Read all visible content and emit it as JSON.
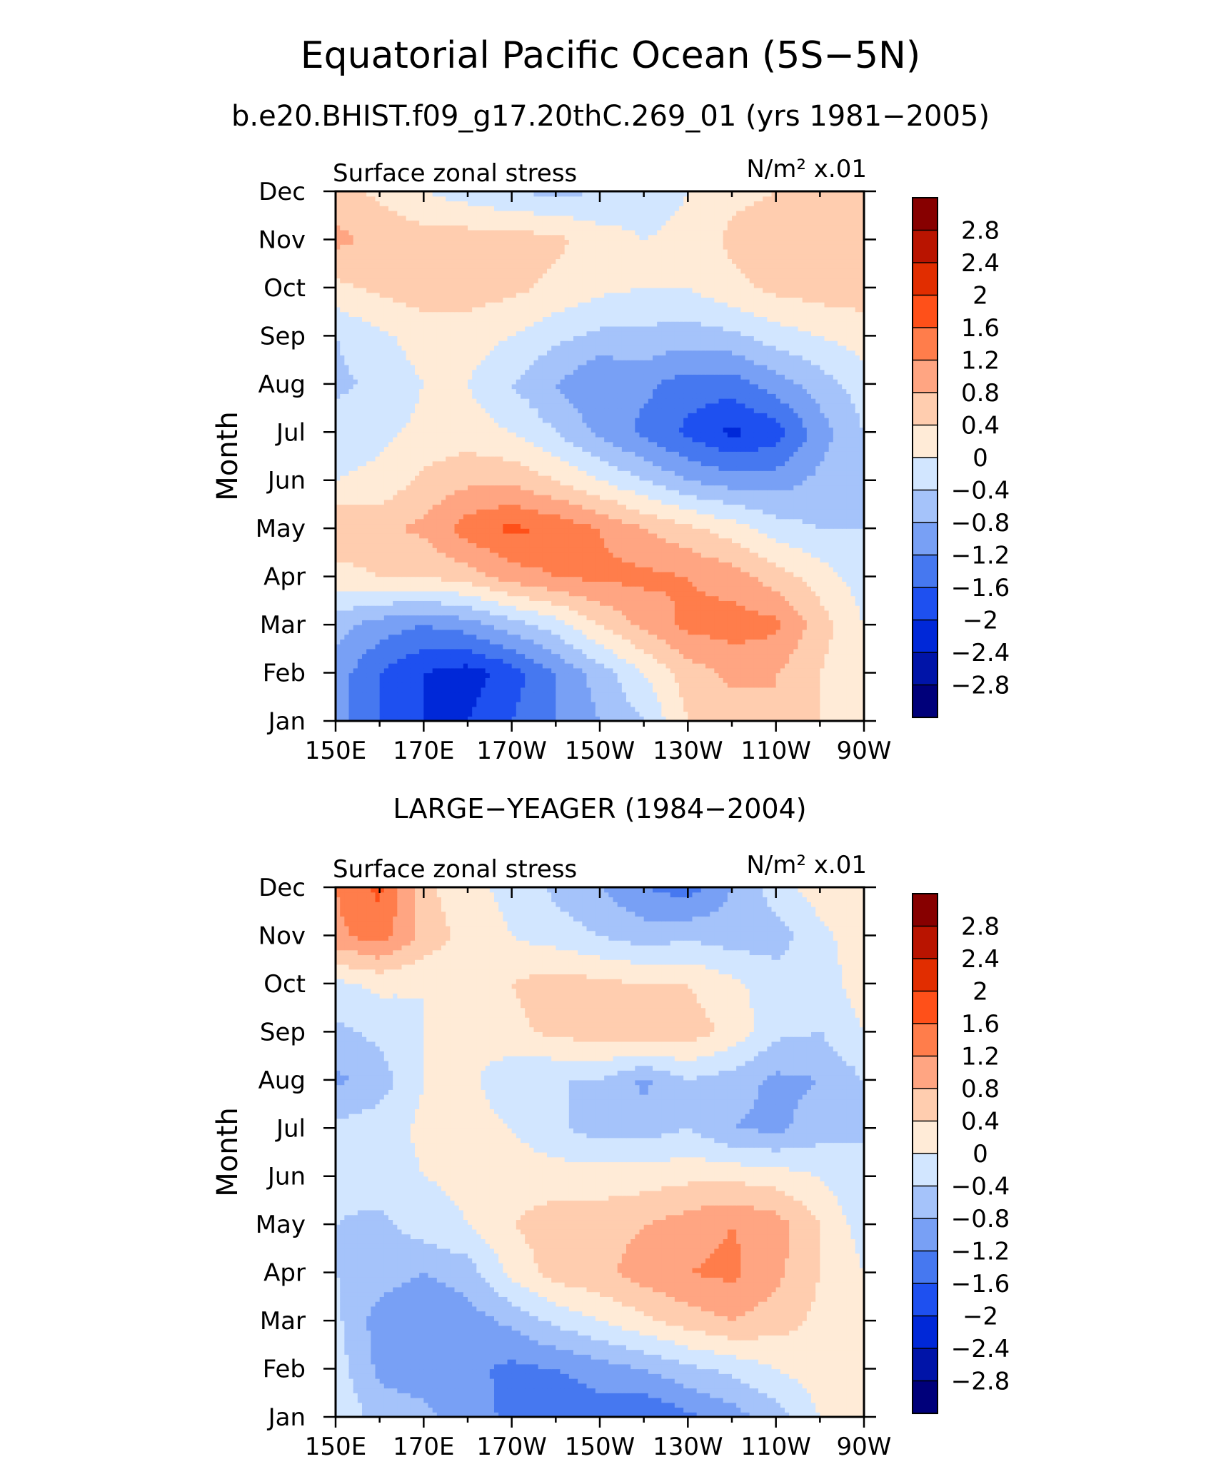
{
  "title": "Equatorial Pacific Ocean (5S−5N)",
  "subtitle": "b.e20.BHIST.f09_g17.20thC.269_01 (yrs 1981−2005)",
  "colorbar": {
    "levels": [
      -3.2,
      -2.8,
      -2.4,
      -2.0,
      -1.6,
      -1.2,
      -0.8,
      -0.4,
      0,
      0.4,
      0.8,
      1.2,
      1.6,
      2.0,
      2.4,
      2.8,
      3.2
    ],
    "labels": [
      "2.8",
      "2.4",
      "2",
      "1.6",
      "1.2",
      "0.8",
      "0.4",
      "0",
      "−0.4",
      "−0.8",
      "−1.2",
      "−1.6",
      "−2",
      "−2.4",
      "−2.8"
    ],
    "colors": [
      "#00007a",
      "#0014a8",
      "#0028d8",
      "#1e50f0",
      "#4678f0",
      "#78a0f5",
      "#a5c3fa",
      "#d2e6ff",
      "#ffebd7",
      "#ffcdaf",
      "#ffa582",
      "#ff7d4b",
      "#ff5019",
      "#e12d00",
      "#b91400",
      "#870000"
    ]
  },
  "chart_data": [
    {
      "type": "heatmap",
      "title": "",
      "left_label": "Surface zonal stress",
      "right_label": "N/m² x.01",
      "ylabel": "Month",
      "xticks": [
        "150E",
        "170E",
        "170W",
        "150W",
        "130W",
        "110W",
        "90W"
      ],
      "yticks": [
        "Jan",
        "Feb",
        "Mar",
        "Apr",
        "May",
        "Jun",
        "Jul",
        "Aug",
        "Sep",
        "Oct",
        "Nov",
        "Dec"
      ],
      "xlim": [
        150,
        270
      ],
      "ylim": [
        1,
        12
      ],
      "x": [
        150,
        160,
        170,
        180,
        190,
        200,
        210,
        220,
        230,
        240,
        250,
        260,
        270
      ],
      "values": [
        [
          -1.0,
          -1.6,
          -2.0,
          -2.0,
          -1.6,
          -1.2,
          -0.8,
          -0.4,
          0.4,
          0.6,
          0.8,
          0.4,
          0.0
        ],
        [
          -1.0,
          -1.6,
          -2.0,
          -2.2,
          -1.8,
          -1.2,
          -0.6,
          0.0,
          0.6,
          0.9,
          0.8,
          0.4,
          0.0
        ],
        [
          -0.6,
          -1.0,
          -1.2,
          -1.0,
          -0.6,
          -0.2,
          0.4,
          0.9,
          1.3,
          1.4,
          1.3,
          0.6,
          0.0
        ],
        [
          0.2,
          0.4,
          0.4,
          0.6,
          1.0,
          1.2,
          1.3,
          1.3,
          1.2,
          1.0,
          0.6,
          0.2,
          -0.2
        ],
        [
          0.8,
          0.7,
          0.9,
          1.4,
          1.7,
          1.5,
          1.2,
          0.8,
          0.5,
          0.2,
          -0.2,
          -0.4,
          -0.4
        ],
        [
          0.0,
          0.1,
          0.5,
          0.7,
          0.7,
          0.4,
          0.0,
          -0.4,
          -0.8,
          -1.0,
          -1.0,
          -0.7,
          -0.4
        ],
        [
          -0.2,
          -0.1,
          0.1,
          0.2,
          0.0,
          -0.4,
          -0.9,
          -1.3,
          -1.7,
          -2.1,
          -1.8,
          -1.0,
          -0.4
        ],
        [
          -0.5,
          -0.3,
          0.0,
          0.0,
          -0.4,
          -0.8,
          -1.2,
          -1.1,
          -1.4,
          -1.4,
          -1.0,
          -0.6,
          -0.2
        ],
        [
          -0.4,
          -0.1,
          0.2,
          0.2,
          0.0,
          -0.3,
          -0.5,
          -0.5,
          -0.6,
          -0.5,
          -0.2,
          0.0,
          0.2
        ],
        [
          0.3,
          0.5,
          0.6,
          0.6,
          0.5,
          0.3,
          0.1,
          0.0,
          0.0,
          0.3,
          0.5,
          0.6,
          0.6
        ],
        [
          0.9,
          0.7,
          0.6,
          0.6,
          0.6,
          0.5,
          0.2,
          0.0,
          0.1,
          0.5,
          0.6,
          0.6,
          0.6
        ],
        [
          0.6,
          0.3,
          0.0,
          -0.2,
          -0.4,
          -0.5,
          -0.4,
          -0.2,
          0.0,
          0.3,
          0.4,
          0.4,
          0.4
        ]
      ]
    },
    {
      "type": "heatmap",
      "title": "LARGE−YEAGER (1984−2004)",
      "left_label": "Surface zonal stress",
      "right_label": "N/m² x.01",
      "ylabel": "Month",
      "xticks": [
        "150E",
        "170E",
        "170W",
        "150W",
        "130W",
        "110W",
        "90W"
      ],
      "yticks": [
        "Jan",
        "Feb",
        "Mar",
        "Apr",
        "May",
        "Jun",
        "Jul",
        "Aug",
        "Sep",
        "Oct",
        "Nov",
        "Dec"
      ],
      "xlim": [
        150,
        270
      ],
      "ylim": [
        1,
        12
      ],
      "x": [
        150,
        160,
        170,
        180,
        190,
        200,
        210,
        220,
        230,
        240,
        250,
        260,
        270
      ],
      "values": [
        [
          0.0,
          -0.6,
          -0.7,
          -1.0,
          -1.3,
          -1.6,
          -1.4,
          -1.6,
          -1.3,
          -1.0,
          -0.6,
          0.0,
          0.2
        ],
        [
          -0.2,
          -0.9,
          -1.0,
          -1.1,
          -1.3,
          -1.2,
          -1.0,
          -0.8,
          -0.5,
          -0.3,
          0.0,
          0.2,
          0.2
        ],
        [
          -0.3,
          -1.0,
          -1.2,
          -1.0,
          -0.7,
          -0.3,
          0.0,
          0.3,
          0.6,
          0.8,
          0.6,
          0.3,
          0.0
        ],
        [
          -0.4,
          -0.6,
          -0.8,
          -0.6,
          0.1,
          0.6,
          0.7,
          1.0,
          1.2,
          1.3,
          0.9,
          0.4,
          0.0
        ],
        [
          -0.4,
          -0.5,
          -0.2,
          0.0,
          0.4,
          0.6,
          0.6,
          0.8,
          1.0,
          1.2,
          1.0,
          0.4,
          -0.2
        ],
        [
          -0.3,
          -0.2,
          0.0,
          0.1,
          0.2,
          0.2,
          0.2,
          0.2,
          0.3,
          0.3,
          0.2,
          0.0,
          -0.4
        ],
        [
          -0.3,
          -0.2,
          0.1,
          0.2,
          0.0,
          -0.3,
          -0.6,
          -0.6,
          -0.4,
          -0.8,
          -0.9,
          -0.6,
          -0.4
        ],
        [
          -0.9,
          -0.6,
          0.0,
          0.1,
          -0.3,
          -0.4,
          -0.4,
          -0.9,
          -0.4,
          -0.6,
          -0.9,
          -0.8,
          -0.4
        ],
        [
          -0.5,
          -0.3,
          0.0,
          0.1,
          0.3,
          0.5,
          0.6,
          0.8,
          0.6,
          0.3,
          -0.3,
          -0.4,
          0.0
        ],
        [
          -0.1,
          0.1,
          0.0,
          0.1,
          0.4,
          0.6,
          0.5,
          0.4,
          0.4,
          0.1,
          -0.2,
          -0.2,
          0.2
        ],
        [
          1.1,
          1.4,
          0.7,
          0.2,
          0.0,
          -0.2,
          -0.4,
          -0.6,
          -0.5,
          -0.6,
          -0.6,
          -0.1,
          0.2
        ],
        [
          1.2,
          1.7,
          0.5,
          0.1,
          -0.1,
          -0.5,
          -0.8,
          -1.2,
          -1.4,
          -0.8,
          -0.2,
          0.2,
          0.2
        ]
      ]
    }
  ]
}
